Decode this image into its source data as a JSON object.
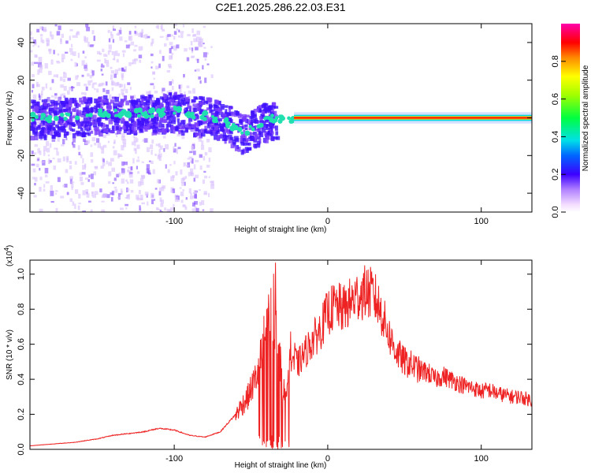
{
  "title": "C2E1.2025.286.22.03.E31",
  "colors": {
    "trace": "#ee2222",
    "ridge": "#ff0000",
    "cloud": "#7a3cff",
    "core": "#4010ff",
    "knot": "#20e0b0"
  },
  "chart_data": [
    {
      "type": "heatmap",
      "xlabel": "Height of straight line (km)",
      "ylabel": "Frequency (Hz)",
      "xlim": [
        -194,
        133
      ],
      "ylim": [
        -50,
        50
      ],
      "x_ticks": [
        -100,
        0,
        100
      ],
      "y_ticks": [
        40,
        20,
        0,
        -20,
        -40
      ],
      "colorbar": {
        "label": "Normalized spectral amplitude",
        "range": [
          0.0,
          1.0
        ],
        "ticks": [
          0.0,
          0.2,
          0.4,
          0.6,
          0.8
        ],
        "tick_labels": [
          "0.0",
          "0.2",
          "0.4",
          "0.6",
          "0.8"
        ]
      },
      "ridge": {
        "x": [
          -190,
          -170,
          -150,
          -130,
          -110,
          -100,
          -90,
          -75,
          -65,
          -55,
          -45,
          -40,
          -35,
          -28,
          -20,
          -10,
          0,
          10,
          20,
          40,
          60,
          80,
          100,
          120,
          133
        ],
        "y": [
          0,
          1,
          2,
          2,
          3,
          4,
          2,
          1,
          -3,
          -8,
          -3,
          -1,
          0,
          -2,
          -1,
          0,
          1,
          0,
          0,
          0,
          0,
          0,
          0,
          0,
          0
        ]
      }
    },
    {
      "type": "line",
      "xlabel": "Height of straight line (km)",
      "ylabel": "SNR (10 * v/v)",
      "scale_label": "(x10",
      "scale_exponent": "4",
      "scale_close": ")",
      "xlim": [
        -194,
        133
      ],
      "ylim": [
        0,
        1.08
      ],
      "x_ticks": [
        -100,
        0,
        100
      ],
      "y_ticks": [
        0.0,
        0.2,
        0.4,
        0.6,
        0.8,
        1.0
      ],
      "y_tick_labels": [
        "0.0",
        "0.2",
        "0.4",
        "0.6",
        "0.8",
        "1.0"
      ],
      "series": [
        {
          "name": "SNR",
          "x": [
            -194,
            -180,
            -165,
            -150,
            -140,
            -130,
            -120,
            -110,
            -100,
            -90,
            -80,
            -70,
            -60,
            -52,
            -45,
            -38,
            -35,
            -32,
            -28,
            -25,
            -20,
            -15,
            -10,
            -5,
            0,
            5,
            10,
            15,
            20,
            25,
            30,
            35,
            40,
            45,
            50,
            55,
            60,
            65,
            70,
            75,
            80,
            85,
            90,
            95,
            100,
            105,
            110,
            115,
            120,
            125,
            133
          ],
          "y": [
            0.02,
            0.03,
            0.04,
            0.06,
            0.08,
            0.09,
            0.1,
            0.12,
            0.11,
            0.08,
            0.07,
            0.1,
            0.2,
            0.3,
            0.45,
            0.8,
            0.75,
            0.55,
            0.3,
            0.55,
            0.48,
            0.55,
            0.62,
            0.68,
            0.78,
            0.82,
            0.8,
            0.84,
            0.88,
            0.9,
            0.88,
            0.78,
            0.65,
            0.55,
            0.5,
            0.48,
            0.45,
            0.44,
            0.4,
            0.42,
            0.4,
            0.38,
            0.36,
            0.35,
            0.33,
            0.34,
            0.32,
            0.31,
            0.3,
            0.3,
            0.28
          ]
        }
      ]
    }
  ]
}
